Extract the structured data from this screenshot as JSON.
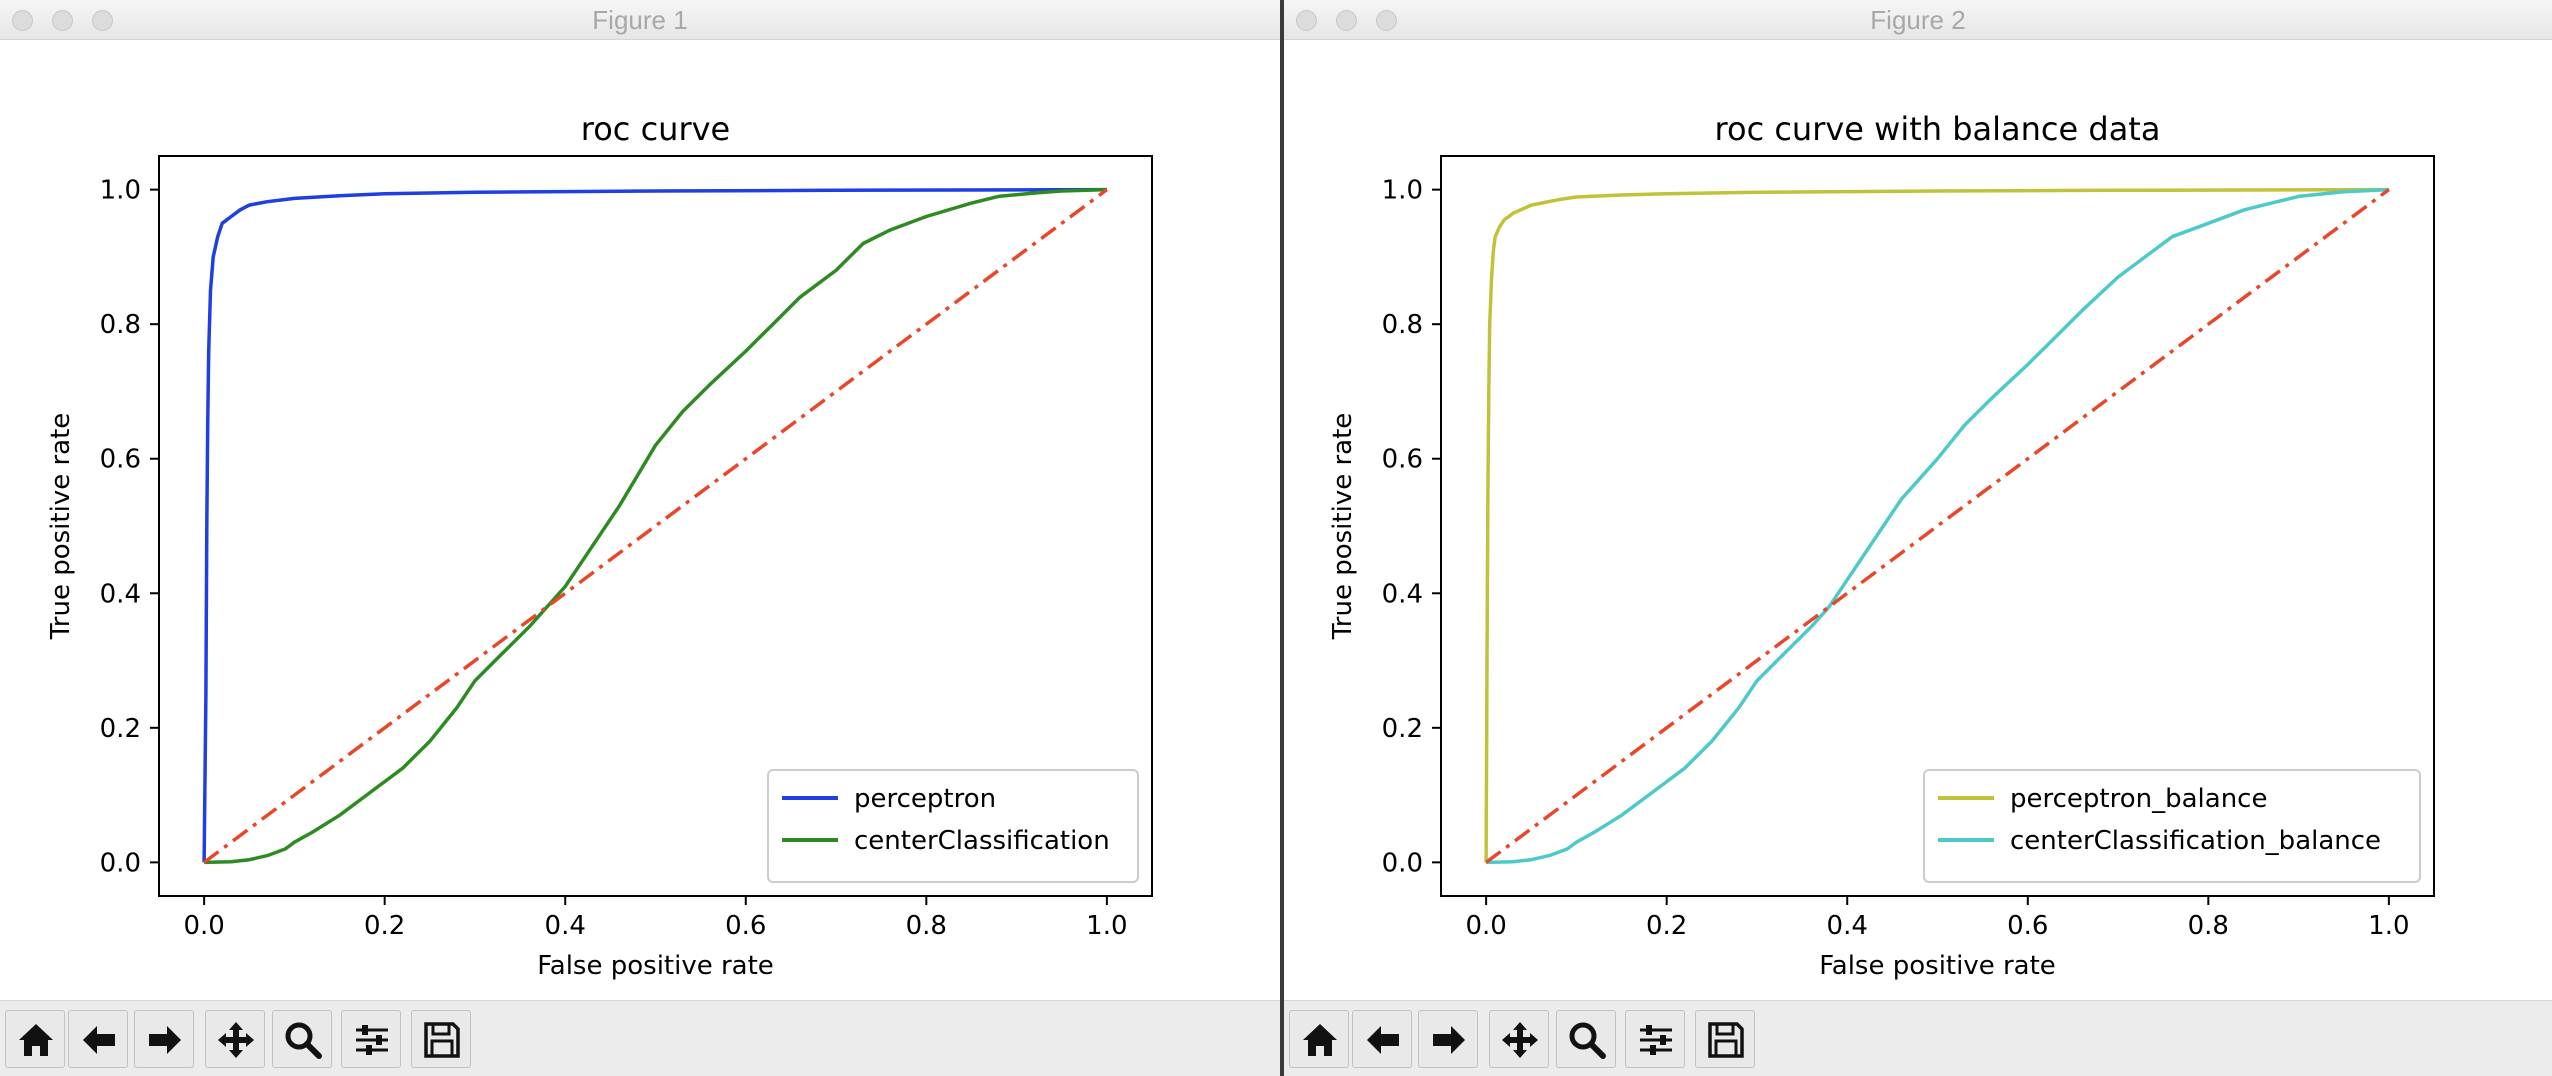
{
  "windows": [
    {
      "title": "Figure 1",
      "chart_data": {
        "type": "line",
        "title": "roc curve",
        "xlabel": "False positive rate",
        "ylabel": "True positive rate",
        "xlim": [
          -0.05,
          1.05
        ],
        "ylim": [
          -0.05,
          1.05
        ],
        "xticks": [
          "0.0",
          "0.2",
          "0.4",
          "0.6",
          "0.8",
          "1.0"
        ],
        "yticks": [
          "0.0",
          "0.2",
          "0.4",
          "0.6",
          "0.8",
          "1.0"
        ],
        "grid": false,
        "legend": "lower-right",
        "series": [
          {
            "name": "perceptron",
            "color": "#1f3fe0",
            "style": "solid",
            "x": [
              0,
              0.002,
              0.003,
              0.004,
              0.005,
              0.007,
              0.01,
              0.015,
              0.02,
              0.03,
              0.04,
              0.05,
              0.07,
              0.1,
              0.15,
              0.2,
              0.3,
              0.5,
              0.7,
              1.0
            ],
            "y": [
              0,
              0.25,
              0.5,
              0.65,
              0.76,
              0.85,
              0.9,
              0.93,
              0.95,
              0.96,
              0.97,
              0.977,
              0.982,
              0.987,
              0.991,
              0.994,
              0.996,
              0.998,
              0.999,
              1.0
            ]
          },
          {
            "name": "centerClassification",
            "color": "#2e8b22",
            "style": "solid",
            "x": [
              0,
              0.03,
              0.05,
              0.07,
              0.09,
              0.1,
              0.12,
              0.15,
              0.18,
              0.2,
              0.22,
              0.25,
              0.28,
              0.3,
              0.33,
              0.36,
              0.4,
              0.43,
              0.46,
              0.5,
              0.53,
              0.56,
              0.6,
              0.63,
              0.66,
              0.7,
              0.73,
              0.76,
              0.8,
              0.85,
              0.88,
              0.92,
              0.95,
              1.0
            ],
            "y": [
              0,
              0.001,
              0.004,
              0.01,
              0.02,
              0.03,
              0.045,
              0.07,
              0.1,
              0.12,
              0.14,
              0.18,
              0.23,
              0.27,
              0.31,
              0.35,
              0.41,
              0.47,
              0.53,
              0.62,
              0.67,
              0.71,
              0.76,
              0.8,
              0.84,
              0.88,
              0.92,
              0.94,
              0.96,
              0.98,
              0.99,
              0.995,
              0.998,
              1.0
            ]
          },
          {
            "name": "",
            "color": "#e8472a",
            "style": "dashdot",
            "x": [
              0,
              1
            ],
            "y": [
              0,
              1
            ]
          }
        ]
      }
    },
    {
      "title": "Figure 2",
      "chart_data": {
        "type": "line",
        "title": "roc curve with balance data",
        "xlabel": "False positive rate",
        "ylabel": "True positive rate",
        "xlim": [
          -0.05,
          1.05
        ],
        "ylim": [
          -0.05,
          1.05
        ],
        "xticks": [
          "0.0",
          "0.2",
          "0.4",
          "0.6",
          "0.8",
          "1.0"
        ],
        "yticks": [
          "0.0",
          "0.2",
          "0.4",
          "0.6",
          "0.8",
          "1.0"
        ],
        "grid": false,
        "legend": "lower-right",
        "series": [
          {
            "name": "perceptron_balance",
            "color": "#bfc23a",
            "style": "solid",
            "x": [
              0,
              0.001,
              0.002,
              0.003,
              0.004,
              0.006,
              0.008,
              0.01,
              0.015,
              0.02,
              0.03,
              0.05,
              0.08,
              0.1,
              0.15,
              0.2,
              0.3,
              0.5,
              0.7,
              1.0
            ],
            "y": [
              0,
              0.3,
              0.55,
              0.7,
              0.8,
              0.87,
              0.91,
              0.93,
              0.945,
              0.955,
              0.965,
              0.977,
              0.985,
              0.989,
              0.992,
              0.994,
              0.996,
              0.998,
              0.999,
              1.0
            ]
          },
          {
            "name": "centerClassification_balance",
            "color": "#4ec9c9",
            "style": "solid",
            "x": [
              0,
              0.03,
              0.05,
              0.07,
              0.09,
              0.1,
              0.12,
              0.15,
              0.18,
              0.2,
              0.22,
              0.25,
              0.28,
              0.3,
              0.33,
              0.36,
              0.38,
              0.4,
              0.43,
              0.46,
              0.5,
              0.53,
              0.56,
              0.6,
              0.63,
              0.66,
              0.7,
              0.73,
              0.76,
              0.8,
              0.84,
              0.87,
              0.9,
              0.95,
              1.0
            ],
            "y": [
              0,
              0.001,
              0.004,
              0.01,
              0.02,
              0.03,
              0.045,
              0.07,
              0.1,
              0.12,
              0.14,
              0.18,
              0.23,
              0.27,
              0.31,
              0.35,
              0.38,
              0.42,
              0.48,
              0.54,
              0.6,
              0.65,
              0.69,
              0.74,
              0.78,
              0.82,
              0.87,
              0.9,
              0.93,
              0.95,
              0.97,
              0.98,
              0.99,
              0.997,
              1.0
            ]
          },
          {
            "name": "",
            "color": "#e8472a",
            "style": "dashdot",
            "x": [
              0,
              1
            ],
            "y": [
              0,
              1
            ]
          }
        ]
      }
    }
  ],
  "toolbar": {
    "buttons": [
      {
        "name": "home-icon"
      },
      {
        "name": "back-arrow-icon"
      },
      {
        "name": "forward-arrow-icon"
      },
      {
        "name": "pan-move-icon"
      },
      {
        "name": "zoom-magnifier-icon"
      },
      {
        "name": "configure-subplots-icon"
      },
      {
        "name": "save-figure-icon"
      }
    ]
  }
}
